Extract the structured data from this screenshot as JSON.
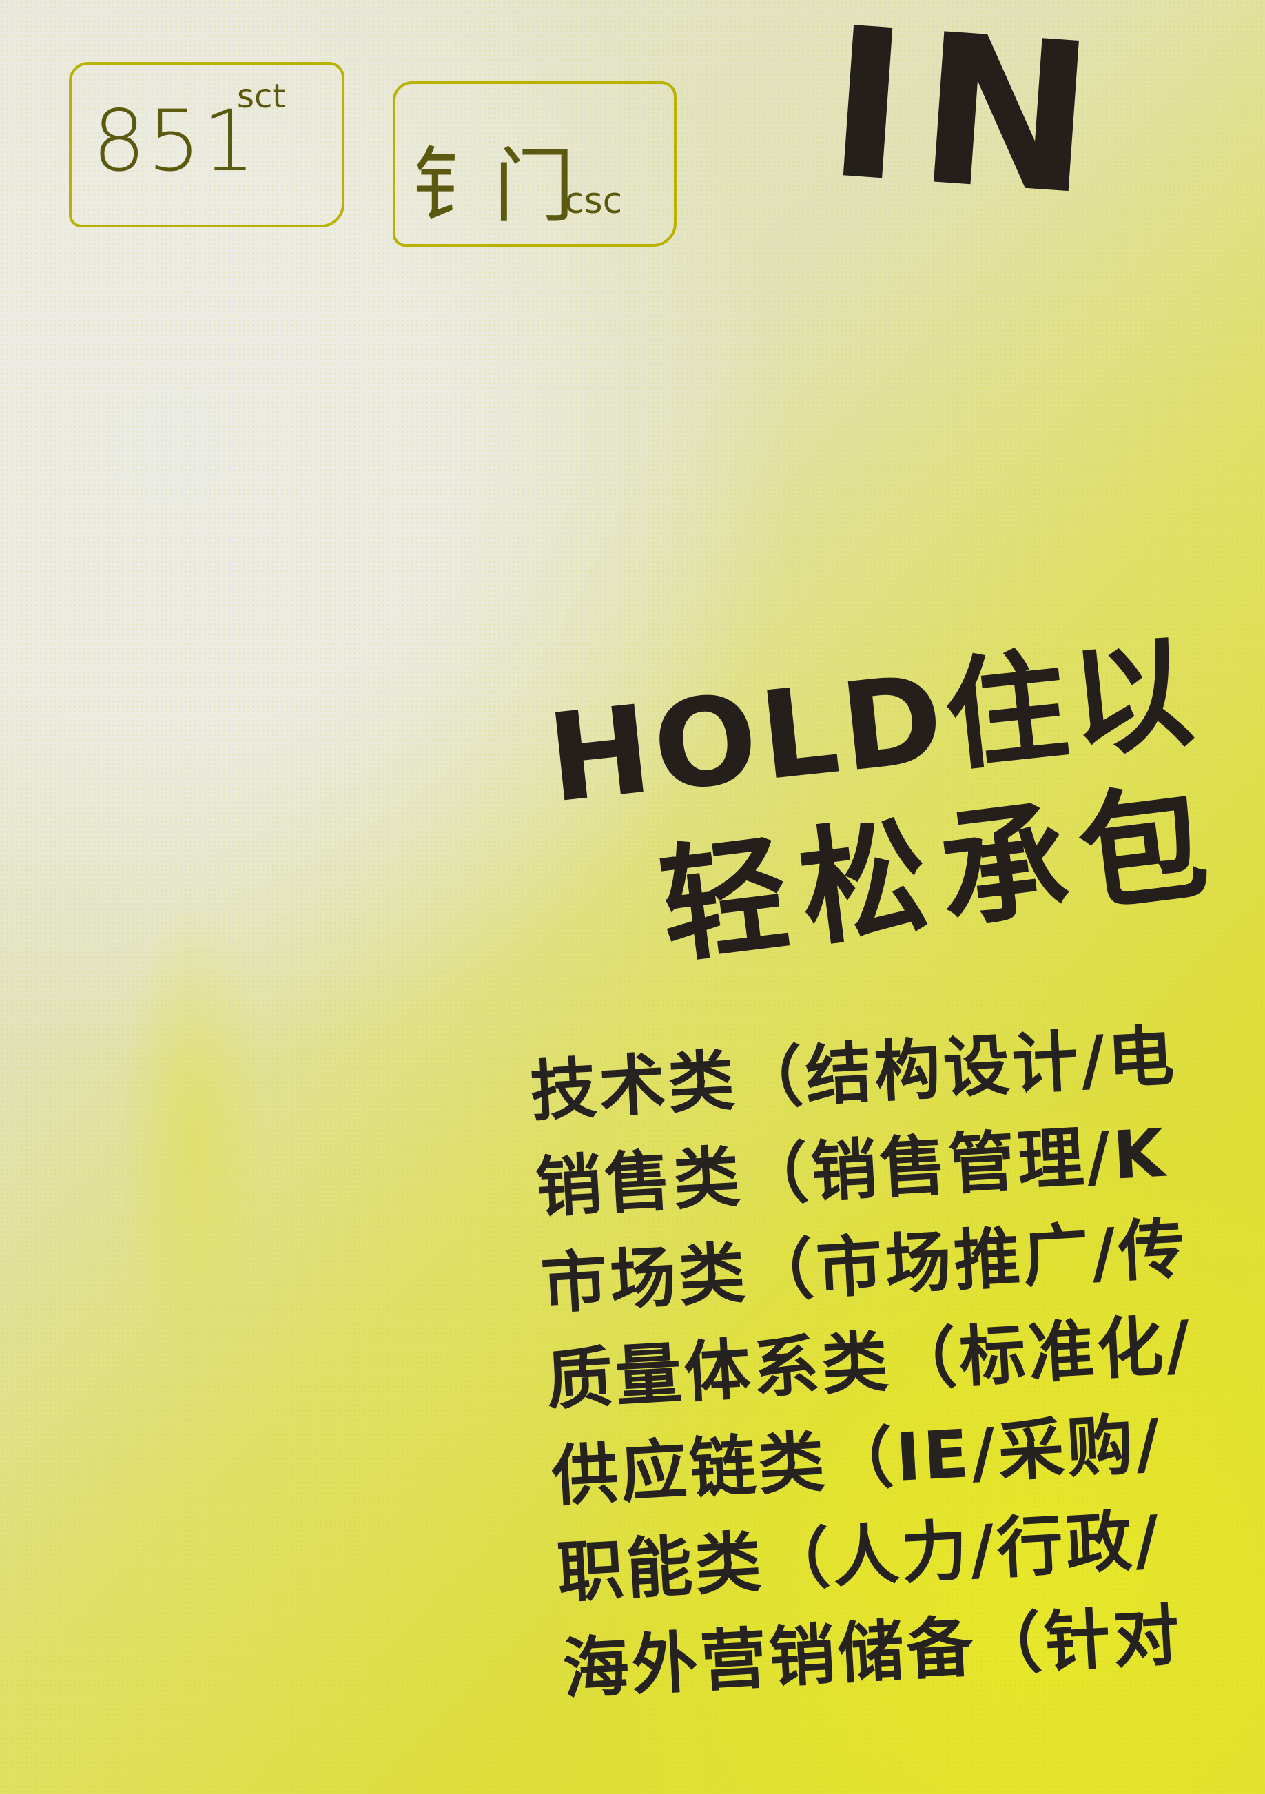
{
  "tags": [
    {
      "main": "851",
      "sub": "sct"
    },
    {
      "main": "钅门",
      "sub": "csc"
    }
  ],
  "headline_partial": "IN",
  "slogan": {
    "line1": "HOLD住以",
    "line2": "轻松承包"
  },
  "job_categories": [
    "技术类（结构设计/电",
    "销售类（销售管理/K",
    "市场类（市场推广/传",
    "质量体系类（标准化/",
    "供应链类（IE/采购/",
    "职能类（人力/行政/",
    "海外营销储备（针对"
  ],
  "colors": {
    "paper": "#e7e7df",
    "yellow": "#e0df30",
    "ink": "#241f1b",
    "tag_outline": "#b8b200"
  }
}
